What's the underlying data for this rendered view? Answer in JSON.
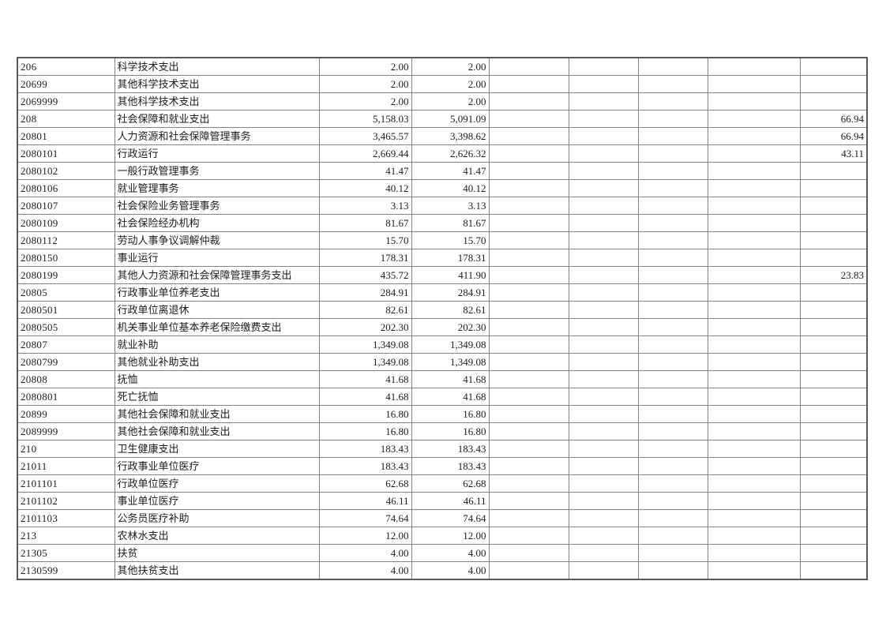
{
  "page": {
    "background_color": "#ffffff",
    "grid_inner_color": "#848484",
    "grid_outer_color": "#5a5a5a",
    "text_color": "#1c1c1c"
  },
  "table": {
    "description": "功能科目预算支出明细表（截取页，无表头）",
    "column_count": 9,
    "rows": [
      [
        "206",
        "科学技术支出",
        "2.00",
        "2.00",
        "",
        "",
        "",
        "",
        ""
      ],
      [
        "20699",
        "其他科学技术支出",
        "2.00",
        "2.00",
        "",
        "",
        "",
        "",
        ""
      ],
      [
        "2069999",
        "其他科学技术支出",
        "2.00",
        "2.00",
        "",
        "",
        "",
        "",
        ""
      ],
      [
        "208",
        "社会保障和就业支出",
        "5,158.03",
        "5,091.09",
        "",
        "",
        "",
        "",
        "66.94"
      ],
      [
        "20801",
        "人力资源和社会保障管理事务",
        "3,465.57",
        "3,398.62",
        "",
        "",
        "",
        "",
        "66.94"
      ],
      [
        "2080101",
        "行政运行",
        "2,669.44",
        "2,626.32",
        "",
        "",
        "",
        "",
        "43.11"
      ],
      [
        "2080102",
        "一般行政管理事务",
        "41.47",
        "41.47",
        "",
        "",
        "",
        "",
        ""
      ],
      [
        "2080106",
        "就业管理事务",
        "40.12",
        "40.12",
        "",
        "",
        "",
        "",
        ""
      ],
      [
        "2080107",
        "社会保险业务管理事务",
        "3.13",
        "3.13",
        "",
        "",
        "",
        "",
        ""
      ],
      [
        "2080109",
        "社会保险经办机构",
        "81.67",
        "81.67",
        "",
        "",
        "",
        "",
        ""
      ],
      [
        "2080112",
        "劳动人事争议调解仲裁",
        "15.70",
        "15.70",
        "",
        "",
        "",
        "",
        ""
      ],
      [
        "2080150",
        "事业运行",
        "178.31",
        "178.31",
        "",
        "",
        "",
        "",
        ""
      ],
      [
        "2080199",
        "其他人力资源和社会保障管理事务支出",
        "435.72",
        "411.90",
        "",
        "",
        "",
        "",
        "23.83"
      ],
      [
        "20805",
        "行政事业单位养老支出",
        "284.91",
        "284.91",
        "",
        "",
        "",
        "",
        ""
      ],
      [
        "2080501",
        "行政单位离退休",
        "82.61",
        "82.61",
        "",
        "",
        "",
        "",
        ""
      ],
      [
        "2080505",
        "机关事业单位基本养老保险缴费支出",
        "202.30",
        "202.30",
        "",
        "",
        "",
        "",
        ""
      ],
      [
        "20807",
        "就业补助",
        "1,349.08",
        "1,349.08",
        "",
        "",
        "",
        "",
        ""
      ],
      [
        "2080799",
        "其他就业补助支出",
        "1,349.08",
        "1,349.08",
        "",
        "",
        "",
        "",
        ""
      ],
      [
        "20808",
        "抚恤",
        "41.68",
        "41.68",
        "",
        "",
        "",
        "",
        ""
      ],
      [
        "2080801",
        "死亡抚恤",
        "41.68",
        "41.68",
        "",
        "",
        "",
        "",
        ""
      ],
      [
        "20899",
        "其他社会保障和就业支出",
        "16.80",
        "16.80",
        "",
        "",
        "",
        "",
        ""
      ],
      [
        "2089999",
        "其他社会保障和就业支出",
        "16.80",
        "16.80",
        "",
        "",
        "",
        "",
        ""
      ],
      [
        "210",
        "卫生健康支出",
        "183.43",
        "183.43",
        "",
        "",
        "",
        "",
        ""
      ],
      [
        "21011",
        "行政事业单位医疗",
        "183.43",
        "183.43",
        "",
        "",
        "",
        "",
        ""
      ],
      [
        "2101101",
        "行政单位医疗",
        "62.68",
        "62.68",
        "",
        "",
        "",
        "",
        ""
      ],
      [
        "2101102",
        "事业单位医疗",
        "46.11",
        "46.11",
        "",
        "",
        "",
        "",
        ""
      ],
      [
        "2101103",
        "公务员医疗补助",
        "74.64",
        "74.64",
        "",
        "",
        "",
        "",
        ""
      ],
      [
        "213",
        "农林水支出",
        "12.00",
        "12.00",
        "",
        "",
        "",
        "",
        ""
      ],
      [
        "21305",
        "扶贫",
        "4.00",
        "4.00",
        "",
        "",
        "",
        "",
        ""
      ],
      [
        "2130599",
        "其他扶贫支出",
        "4.00",
        "4.00",
        "",
        "",
        "",
        "",
        ""
      ]
    ]
  }
}
